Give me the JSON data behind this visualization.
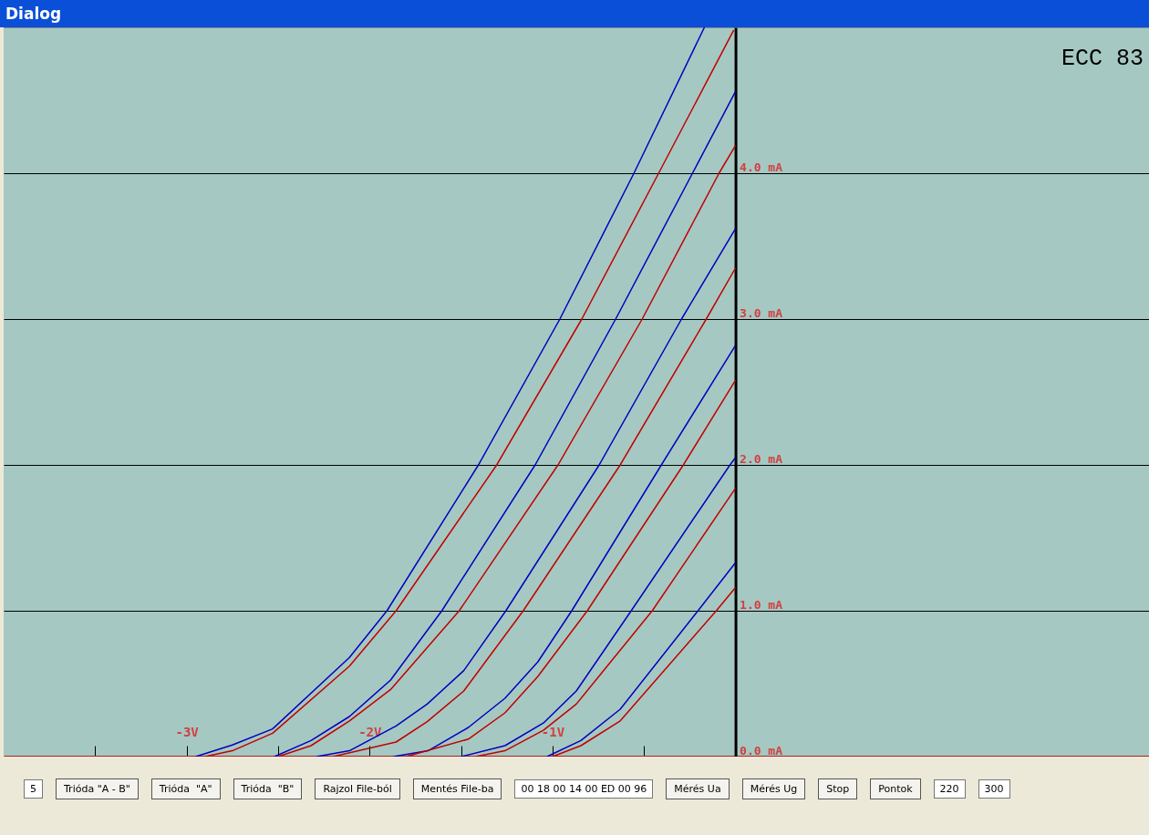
{
  "chart_data": {
    "type": "line",
    "title": "ECC 83",
    "annotations": [
      "Dialog",
      "5",
      "Trióda \"A - B\"",
      "Trióda  \"A\"",
      "Trióda  \"B\"",
      "Rajzol File-ból",
      "Mentés File-ba",
      "00 18 00 14 00 ED 00 96",
      "Mérés Ua",
      "Mérés Ug",
      "Stop",
      "Pontok",
      "220",
      "300"
    ],
    "xlim": [
      -4,
      2.26
    ],
    "ylim": [
      0,
      5
    ],
    "xticks": [
      {
        "value": -3.5,
        "label": null
      },
      {
        "value": -3,
        "label": "-3V"
      },
      {
        "value": -2.5,
        "label": null
      },
      {
        "value": -2,
        "label": "-2V"
      },
      {
        "value": -1.5,
        "label": null
      },
      {
        "value": -1,
        "label": "-1V"
      },
      {
        "value": -0.5,
        "label": null
      }
    ],
    "yticks": [
      {
        "value": 0,
        "label": "0.0 mA"
      },
      {
        "value": 1,
        "label": "1.0 mA"
      },
      {
        "value": 2,
        "label": "2.0 mA"
      },
      {
        "value": 3,
        "label": "3.0 mA"
      },
      {
        "value": 4,
        "label": "4.0 mA"
      }
    ],
    "grid": "y",
    "marker": "none",
    "line_style": "solid",
    "series": [
      {
        "color": "#0000c0",
        "x": [
          -2.95,
          -2.75,
          -2.53,
          -2.11,
          -1.905,
          -1.405,
          -0.96,
          -0.555,
          -0.17
        ],
        "values": [
          0,
          0.08,
          0.19,
          0.68,
          1.0,
          2.0,
          3.0,
          4.0,
          5.0
        ]
      },
      {
        "color": "#c00000",
        "x": [
          -2.9,
          -2.75,
          -2.53,
          -2.11,
          -1.855,
          -1.305,
          -0.84,
          -0.42,
          -0.01
        ],
        "values": [
          0,
          0.04,
          0.16,
          0.62,
          1.0,
          2.0,
          3.0,
          4.0,
          4.98
        ]
      },
      {
        "color": "#0000c0",
        "x": [
          -2.52,
          -2.32,
          -2.11,
          -1.885,
          -1.605,
          -1.095,
          -0.655,
          -0.235,
          0
        ],
        "values": [
          0,
          0.11,
          0.275,
          0.525,
          1.0,
          2.0,
          3.0,
          4.0,
          4.56
        ]
      },
      {
        "color": "#c00000",
        "x": [
          -2.5,
          -2.32,
          -2.11,
          -1.885,
          -1.51,
          -0.97,
          -0.51,
          -0.09,
          0
        ],
        "values": [
          0,
          0.075,
          0.245,
          0.46,
          1.0,
          2.0,
          3.0,
          4.0,
          4.19
        ]
      },
      {
        "color": "#0000c0",
        "x": [
          -2.29,
          -2.11,
          -1.855,
          -1.685,
          -1.485,
          -1.255,
          -0.745,
          -0.295,
          0
        ],
        "values": [
          0,
          0.04,
          0.21,
          0.36,
          0.59,
          1.0,
          2.0,
          3.0,
          3.62
        ]
      },
      {
        "color": "#c00000",
        "x": [
          -2.2,
          -1.855,
          -1.685,
          -1.485,
          -1.16,
          -0.63,
          -0.16,
          0
        ],
        "values": [
          0,
          0.1,
          0.24,
          0.45,
          1.0,
          2.0,
          3.0,
          3.35
        ]
      },
      {
        "color": "#0000c0",
        "x": [
          -1.87,
          -1.68,
          -1.46,
          -1.26,
          -1.08,
          -0.895,
          -0.405,
          0
        ],
        "values": [
          0,
          0.04,
          0.2,
          0.4,
          0.65,
          1.0,
          2.0,
          2.82
        ]
      },
      {
        "color": "#c00000",
        "x": [
          -1.8,
          -1.46,
          -1.26,
          -1.08,
          -0.81,
          -0.285,
          0
        ],
        "values": [
          0,
          0.12,
          0.3,
          0.55,
          1.0,
          2.0,
          2.58
        ]
      },
      {
        "color": "#0000c0",
        "x": [
          -1.5,
          -1.26,
          -1.05,
          -0.87,
          -0.57,
          -0.03,
          0
        ],
        "values": [
          0,
          0.075,
          0.23,
          0.45,
          1.0,
          2.0,
          2.05
        ]
      },
      {
        "color": "#c00000",
        "x": [
          -1.42,
          -1.26,
          -1.05,
          -0.87,
          -0.455,
          0
        ],
        "values": [
          0,
          0.04,
          0.18,
          0.36,
          1.0,
          1.84
        ]
      },
      {
        "color": "#0000c0",
        "x": [
          -1.03,
          -0.845,
          -0.63,
          -0.205,
          0
        ],
        "values": [
          0,
          0.11,
          0.325,
          1.0,
          1.33
        ]
      },
      {
        "color": "#c00000",
        "x": [
          -1.0,
          -0.845,
          -0.63,
          -0.105,
          0
        ],
        "values": [
          0,
          0.075,
          0.245,
          1.0,
          1.16
        ]
      }
    ]
  }
}
